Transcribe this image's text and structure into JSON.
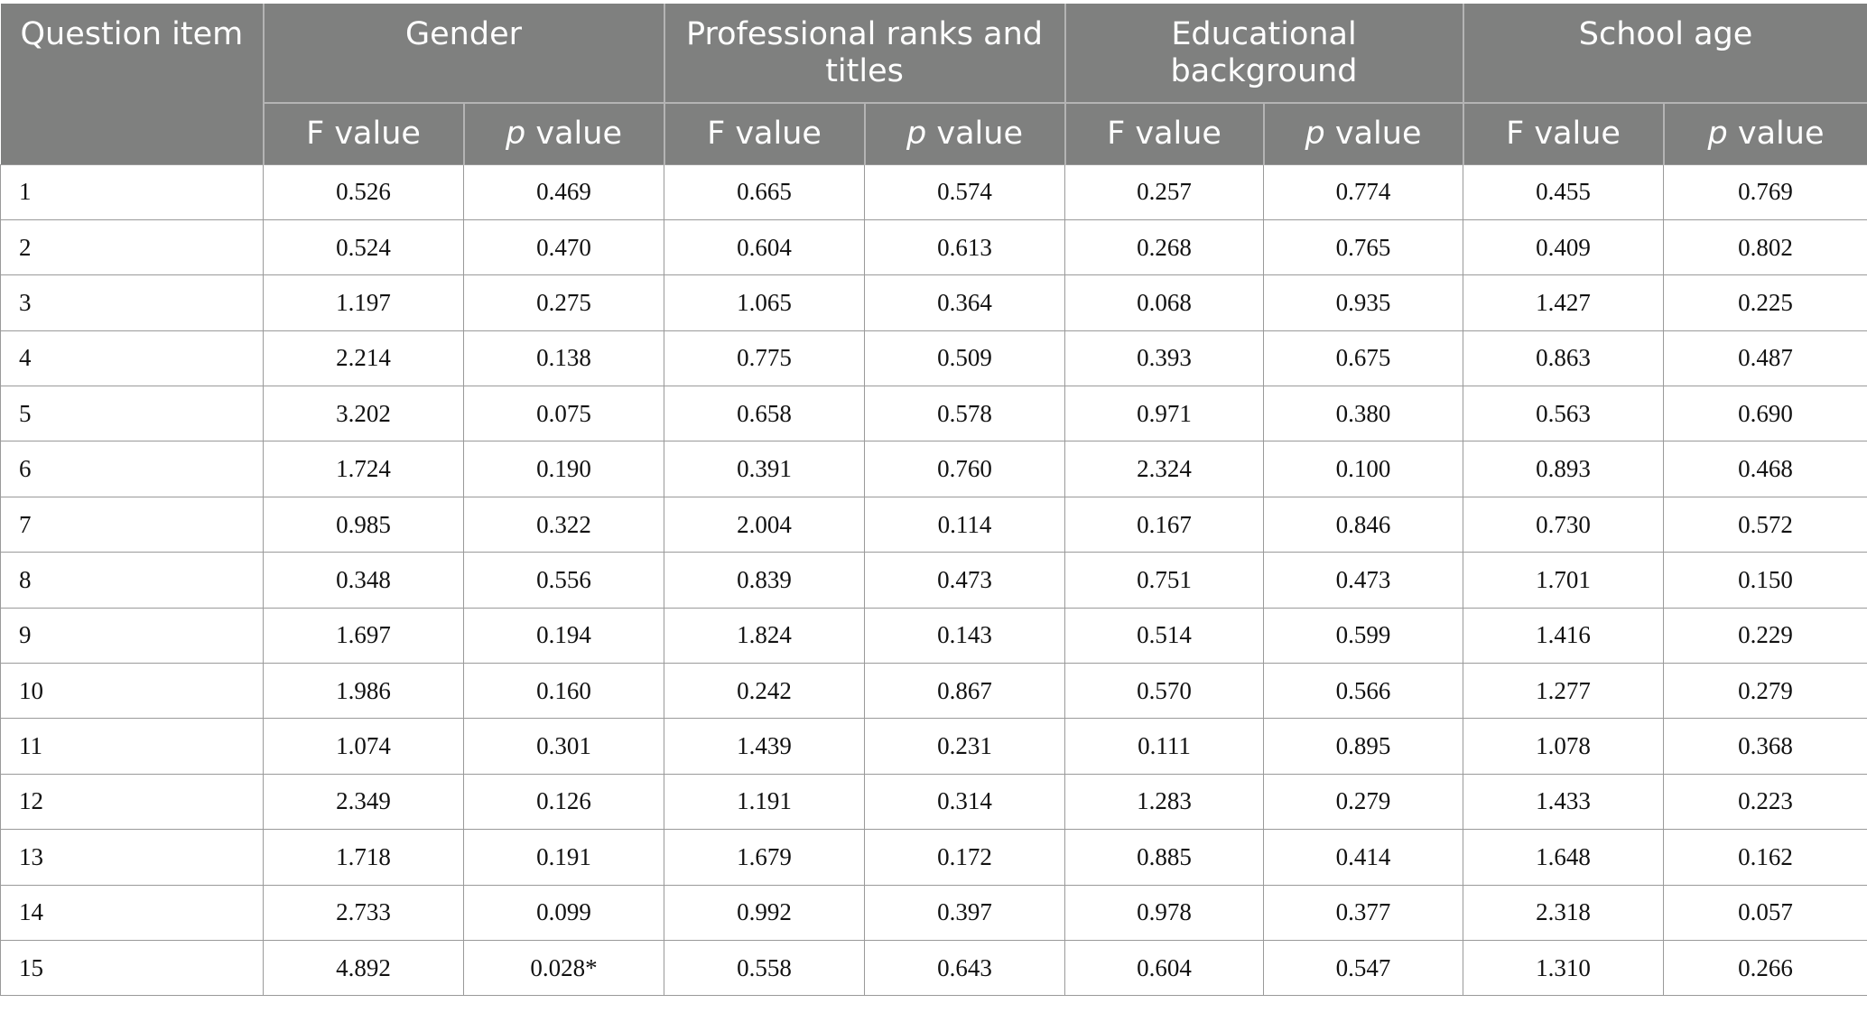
{
  "table": {
    "header": {
      "question_item": "Question item",
      "groups": [
        "Gender",
        "Professional ranks and titles",
        "Educational background",
        "School age"
      ],
      "f_label": "F value",
      "p_italic": "p",
      "p_suffix": " value"
    },
    "rows": [
      {
        "item": "1",
        "values": [
          "0.526",
          "0.469",
          "0.665",
          "0.574",
          "0.257",
          "0.774",
          "0.455",
          "0.769"
        ]
      },
      {
        "item": "2",
        "values": [
          "0.524",
          "0.470",
          "0.604",
          "0.613",
          "0.268",
          "0.765",
          "0.409",
          "0.802"
        ]
      },
      {
        "item": "3",
        "values": [
          "1.197",
          "0.275",
          "1.065",
          "0.364",
          "0.068",
          "0.935",
          "1.427",
          "0.225"
        ]
      },
      {
        "item": "4",
        "values": [
          "2.214",
          "0.138",
          "0.775",
          "0.509",
          "0.393",
          "0.675",
          "0.863",
          "0.487"
        ]
      },
      {
        "item": "5",
        "values": [
          "3.202",
          "0.075",
          "0.658",
          "0.578",
          "0.971",
          "0.380",
          "0.563",
          "0.690"
        ]
      },
      {
        "item": "6",
        "values": [
          "1.724",
          "0.190",
          "0.391",
          "0.760",
          "2.324",
          "0.100",
          "0.893",
          "0.468"
        ]
      },
      {
        "item": "7",
        "values": [
          "0.985",
          "0.322",
          "2.004",
          "0.114",
          "0.167",
          "0.846",
          "0.730",
          "0.572"
        ]
      },
      {
        "item": "8",
        "values": [
          "0.348",
          "0.556",
          "0.839",
          "0.473",
          "0.751",
          "0.473",
          "1.701",
          "0.150"
        ]
      },
      {
        "item": "9",
        "values": [
          "1.697",
          "0.194",
          "1.824",
          "0.143",
          "0.514",
          "0.599",
          "1.416",
          "0.229"
        ]
      },
      {
        "item": "10",
        "values": [
          "1.986",
          "0.160",
          "0.242",
          "0.867",
          "0.570",
          "0.566",
          "1.277",
          "0.279"
        ]
      },
      {
        "item": "11",
        "values": [
          "1.074",
          "0.301",
          "1.439",
          "0.231",
          "0.111",
          "0.895",
          "1.078",
          "0.368"
        ]
      },
      {
        "item": "12",
        "values": [
          "2.349",
          "0.126",
          "1.191",
          "0.314",
          "1.283",
          "0.279",
          "1.433",
          "0.223"
        ]
      },
      {
        "item": "13",
        "values": [
          "1.718",
          "0.191",
          "1.679",
          "0.172",
          "0.885",
          "0.414",
          "1.648",
          "0.162"
        ]
      },
      {
        "item": "14",
        "values": [
          "2.733",
          "0.099",
          "0.992",
          "0.397",
          "0.978",
          "0.377",
          "2.318",
          "0.057"
        ]
      },
      {
        "item": "15",
        "values": [
          "4.892",
          "0.028*",
          "0.558",
          "0.643",
          "0.604",
          "0.547",
          "1.310",
          "0.266"
        ]
      }
    ],
    "colors": {
      "header_bg": "#7f807f",
      "header_text": "#ffffff",
      "grid_line": "#9a9a9a"
    }
  }
}
